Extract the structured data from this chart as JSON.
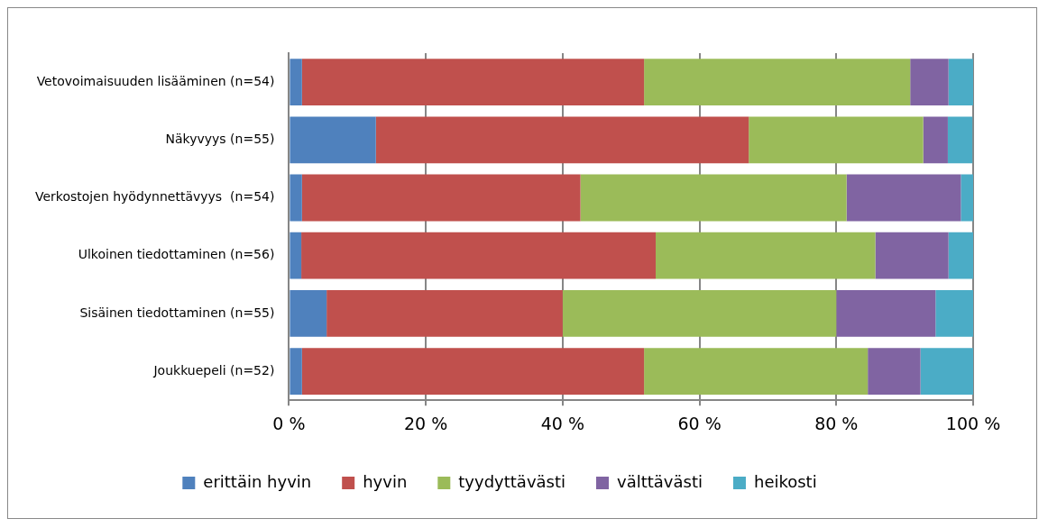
{
  "chart_data": {
    "type": "bar",
    "orientation": "horizontal",
    "stacked": true,
    "categories": [
      "Vetovoimaisuuden lisääminen (n=54)",
      "Näkyvyys (n=55)",
      "Verkostojen hyödynnettävyys  (n=54)",
      "Ulkoinen tiedottaminen (n=56)",
      "Sisäinen tiedottaminen (n=55)",
      "Joukkuepeli (n=52)"
    ],
    "series": [
      {
        "name": "erittäin hyvin",
        "color": "#4f81bd",
        "values": [
          1.9,
          12.7,
          1.9,
          1.8,
          5.5,
          1.9
        ]
      },
      {
        "name": "hyvin",
        "color": "#c0504d",
        "values": [
          50.0,
          54.5,
          40.7,
          51.8,
          34.5,
          50.0
        ]
      },
      {
        "name": "tyydyttävästi",
        "color": "#9bbb59",
        "values": [
          38.9,
          25.5,
          38.9,
          32.1,
          40.0,
          32.7
        ]
      },
      {
        "name": "välttävästi",
        "color": "#8064a2",
        "values": [
          5.6,
          3.6,
          16.7,
          10.7,
          14.5,
          7.7
        ]
      },
      {
        "name": "heikosti",
        "color": "#4bacc6",
        "values": [
          3.6,
          3.6,
          1.8,
          3.6,
          5.5,
          7.7
        ]
      }
    ],
    "xlim": [
      0,
      100
    ],
    "xticks": [
      {
        "value": 0,
        "label": "0 %"
      },
      {
        "value": 20,
        "label": "20 %"
      },
      {
        "value": 40,
        "label": "40 %"
      },
      {
        "value": 60,
        "label": "60 %"
      },
      {
        "value": 80,
        "label": "80 %"
      },
      {
        "value": 100,
        "label": "100 %"
      }
    ],
    "grid": "x",
    "legend": "bottom"
  }
}
